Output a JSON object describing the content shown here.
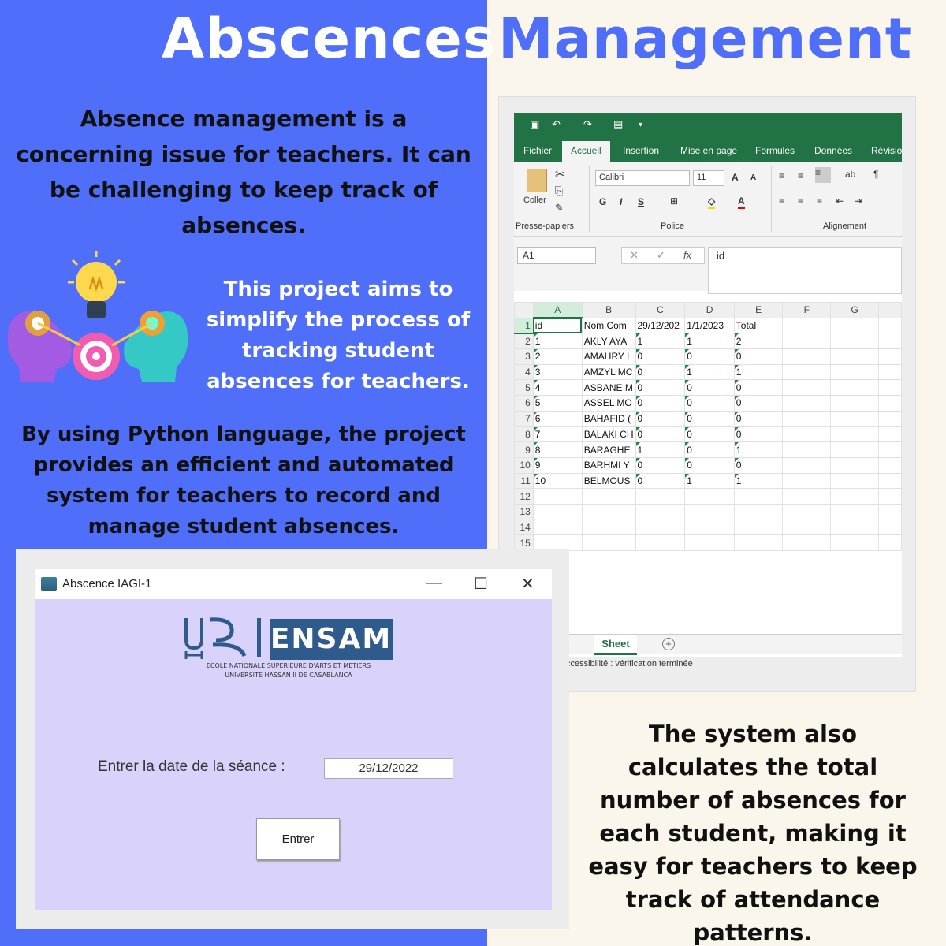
{
  "poster": {
    "title_part1": "Abscences",
    "title_part2": "Management",
    "para1": "Absence management is a concerning issue for teachers. It can be challenging to keep track of absences.",
    "para2": "This project aims to simplify the process of tracking student absences for teachers.",
    "para3": "By using Python language, the project provides an efficient and automated system for teachers to record and manage student absences.",
    "para4": "The system also calculates the total number of absences for each student, making it easy for teachers to keep track of attendance patterns.",
    "colors": {
      "blue": "#4f6ffb",
      "cream": "#fbf6ec",
      "excel_green": "#217346"
    },
    "illustration_icon": "heads-lightbulb-gears-icon"
  },
  "excel": {
    "tabs": [
      "Fichier",
      "Accueil",
      "Insertion",
      "Mise en page",
      "Formules",
      "Données",
      "Révision"
    ],
    "active_tab": "Accueil",
    "clipboard_label": "Coller",
    "font_name": "Calibri",
    "font_size": "11",
    "group_labels": [
      "Presse-papiers",
      "Police",
      "Alignement"
    ],
    "bold": "G",
    "italic": "I",
    "underline": "S",
    "name_box": "A1",
    "formula_value": "id",
    "fx": "fx",
    "columns": [
      "A",
      "B",
      "C",
      "D",
      "E",
      "F",
      "G"
    ],
    "rows": [
      [
        "id",
        "Nom Com",
        "29/12/202",
        "1/1/2023",
        "Total"
      ],
      [
        "1",
        "AKLY AYA",
        "1",
        "1",
        "2"
      ],
      [
        "2",
        "AMAHRY I",
        "0",
        "0",
        "0"
      ],
      [
        "3",
        "AMZYL MC",
        "0",
        "1",
        "1"
      ],
      [
        "4",
        "ASBANE M",
        "0",
        "0",
        "0"
      ],
      [
        "5",
        "ASSEL MO",
        "0",
        "0",
        "0"
      ],
      [
        "6",
        "BAHAFID (",
        "0",
        "0",
        "0"
      ],
      [
        "7",
        "BALAKI CH",
        "0",
        "0",
        "0"
      ],
      [
        "8",
        "BARAGHE",
        "1",
        "0",
        "1"
      ],
      [
        "9",
        "BARHMI Y",
        "0",
        "0",
        "0"
      ],
      [
        "10",
        "BELMOUS",
        "0",
        "1",
        "1"
      ]
    ],
    "row_numbers": [
      "1",
      "2",
      "3",
      "4",
      "5",
      "6",
      "7",
      "8",
      "9",
      "10",
      "11",
      "12",
      "13",
      "14",
      "15"
    ],
    "sheet_tab": "Sheet",
    "add_sheet": "+",
    "status": "ccessibilité : vérification terminée"
  },
  "app": {
    "window_title": "Abscence IAGI-1",
    "minimize": "—",
    "maximize": "☐",
    "close": "✕",
    "logo_text": "ENSAM",
    "logo_line1": "ECOLE NATIONALE SUPERIEURE D'ARTS ET METIERS",
    "logo_line2": "UNIVERSITE HASSAN II DE CASABLANCA",
    "date_label": "Entrer la date de la séance :",
    "date_value": "29/12/2022",
    "submit_label": "Entrer"
  }
}
